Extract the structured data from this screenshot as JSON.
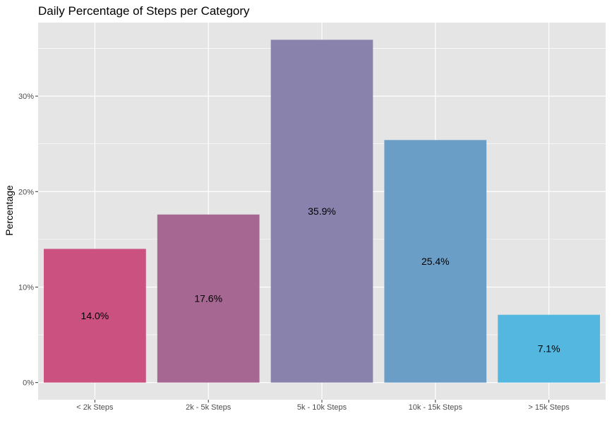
{
  "chart_data": {
    "type": "bar",
    "title": "Daily Percentage of Steps per Category",
    "xlabel": "",
    "ylabel": "Percentage",
    "categories": [
      "< 2k Steps",
      "2k - 5k Steps",
      "5k - 10k Steps",
      "10k - 15k Steps",
      "> 15k Steps"
    ],
    "values": [
      14.0,
      17.6,
      35.9,
      25.4,
      7.1
    ],
    "data_labels": [
      "14.0%",
      "17.6%",
      "35.9%",
      "25.4%",
      "7.1%"
    ],
    "colors": [
      "#CA5180",
      "#A66893",
      "#8882AD",
      "#6A9EC7",
      "#53B7DF"
    ],
    "ylim": [
      -1.8,
      37.7
    ],
    "yticks": [
      0,
      10,
      20,
      30
    ],
    "ytick_labels": [
      "0%",
      "10%",
      "20%",
      "30%"
    ],
    "grid": true,
    "panel_background": "#E5E5E5",
    "grid_color": "#FFFFFF"
  }
}
